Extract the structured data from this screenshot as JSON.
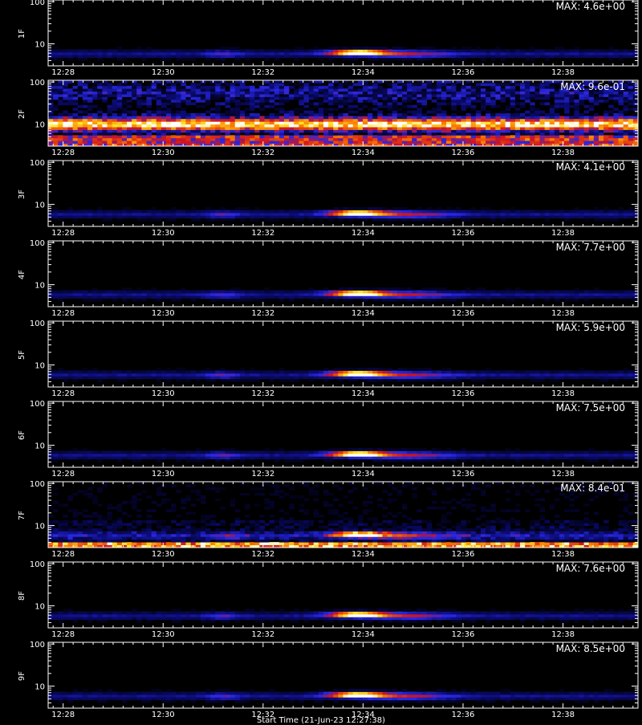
{
  "chart_data": {
    "type": "heatmap",
    "x_ticks": [
      "12:28",
      "12:30",
      "12:32",
      "12:34",
      "12:36",
      "12:38"
    ],
    "x_tick_minutes": [
      28,
      30,
      32,
      34,
      36,
      38
    ],
    "xlim_minutes": [
      27.7,
      39.5
    ],
    "y_ticks": [
      10,
      100
    ],
    "ylim": [
      3,
      110
    ],
    "y_scale": "log",
    "xlabel": "Start Time (21-Jun-23 12:27:38)",
    "colormap": "black-blue-red-yellow-white",
    "panels": [
      {
        "label": "1F",
        "max_text": "MAX: 4.6e+00",
        "pattern": "burst",
        "noise": 0.1,
        "burst_strength": 1.0
      },
      {
        "label": "2F",
        "max_text": "MAX: 9.6e-01",
        "pattern": "band",
        "noise": 0.35,
        "burst_strength": 0.0
      },
      {
        "label": "3F",
        "max_text": "MAX: 4.1e+00",
        "pattern": "burst",
        "noise": 0.1,
        "burst_strength": 1.0
      },
      {
        "label": "4F",
        "max_text": "MAX: 7.7e+00",
        "pattern": "burst",
        "noise": 0.1,
        "burst_strength": 1.0
      },
      {
        "label": "5F",
        "max_text": "MAX: 5.9e+00",
        "pattern": "burst",
        "noise": 0.1,
        "burst_strength": 1.0
      },
      {
        "label": "6F",
        "max_text": "MAX: 7.5e+00",
        "pattern": "burst",
        "noise": 0.1,
        "burst_strength": 1.0
      },
      {
        "label": "7F",
        "max_text": "MAX: 8.4e-01",
        "pattern": "bottom-noise",
        "noise": 0.25,
        "burst_strength": 0.85
      },
      {
        "label": "8F",
        "max_text": "MAX: 7.6e+00",
        "pattern": "burst",
        "noise": 0.1,
        "burst_strength": 1.0
      },
      {
        "label": "9F",
        "max_text": "MAX: 8.5e+00",
        "pattern": "burst",
        "noise": 0.1,
        "burst_strength": 1.0
      }
    ]
  }
}
